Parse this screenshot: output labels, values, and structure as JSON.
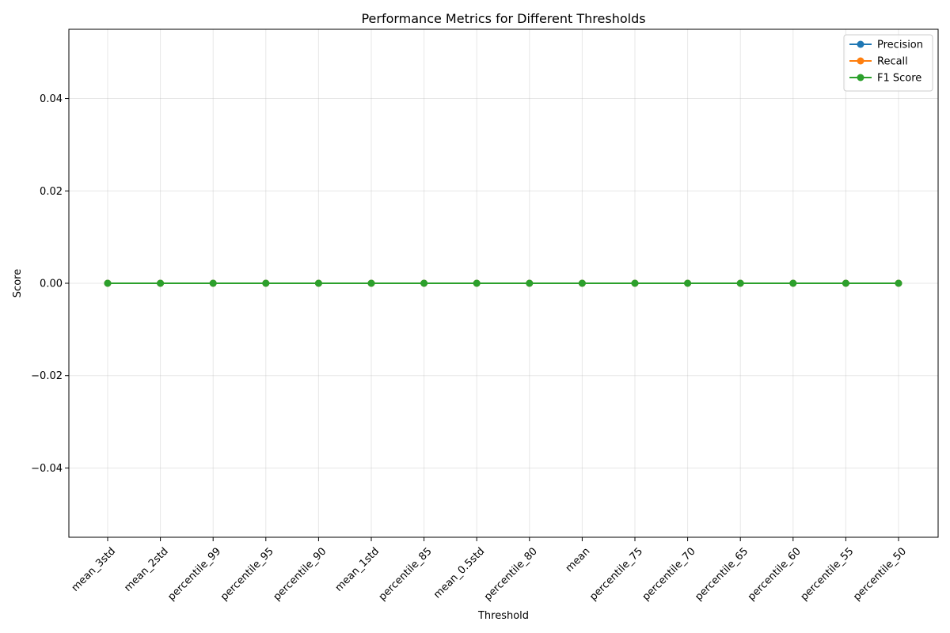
{
  "chart_data": {
    "type": "line",
    "title": "Performance Metrics for Different Thresholds",
    "xlabel": "Threshold",
    "ylabel": "Score",
    "categories": [
      "mean_3std",
      "mean_2std",
      "percentile_99",
      "percentile_95",
      "percentile_90",
      "mean_1std",
      "percentile_85",
      "mean_0.5std",
      "percentile_80",
      "mean",
      "percentile_75",
      "percentile_70",
      "percentile_65",
      "percentile_60",
      "percentile_55",
      "percentile_50"
    ],
    "series": [
      {
        "name": "Precision",
        "color": "#1f77b4",
        "values": [
          0,
          0,
          0,
          0,
          0,
          0,
          0,
          0,
          0,
          0,
          0,
          0,
          0,
          0,
          0,
          0
        ]
      },
      {
        "name": "Recall",
        "color": "#ff7f0e",
        "values": [
          0,
          0,
          0,
          0,
          0,
          0,
          0,
          0,
          0,
          0,
          0,
          0,
          0,
          0,
          0,
          0
        ]
      },
      {
        "name": "F1 Score",
        "color": "#2ca02c",
        "values": [
          0,
          0,
          0,
          0,
          0,
          0,
          0,
          0,
          0,
          0,
          0,
          0,
          0,
          0,
          0,
          0
        ]
      }
    ],
    "ylim": [
      -0.055,
      0.055
    ],
    "yticks": [
      -0.04,
      -0.02,
      0.0,
      0.02,
      0.04
    ],
    "ytick_labels": [
      "−0.04",
      "−0.02",
      "0.00",
      "0.02",
      "0.04"
    ],
    "grid": true,
    "legend_position": "top-right",
    "marker": "circle"
  }
}
